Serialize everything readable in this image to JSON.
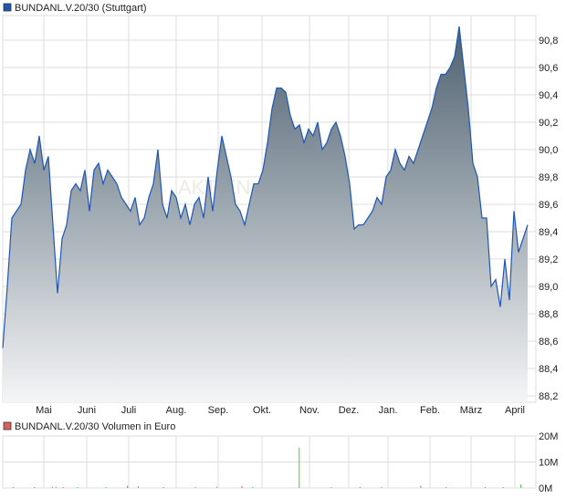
{
  "price_legend": {
    "label": "BUNDANL.V.20/30 (Stuttgart)",
    "color": "#1f56b4"
  },
  "volume_legend": {
    "label": "BUNDANL.V.20/30 Volumen in Euro",
    "color": "#d9625e"
  },
  "watermark": "AKTIEN",
  "chart_data": [
    {
      "type": "area",
      "title": "BUNDANL.V.20/30 (Stuttgart)",
      "x_tick_labels": [
        "Mai",
        "Juni",
        "Juli",
        "Aug.",
        "Sep.",
        "Okt.",
        "Nov.",
        "Dez.",
        "Jan.",
        "Feb.",
        "März",
        "April"
      ],
      "y_ticks": [
        "88,2",
        "88,4",
        "88,6",
        "88,8",
        "89,0",
        "89,2",
        "89,4",
        "89,6",
        "89,8",
        "90,0",
        "90,2",
        "90,4",
        "90,6",
        "90,8"
      ],
      "ylim": [
        88.15,
        91.0
      ],
      "grid": true,
      "line_color": "#1f56b4",
      "fill_top_color": "#4e6170",
      "fill_bottom_color": "#f4f5f6",
      "values": [
        88.55,
        89.0,
        89.5,
        89.55,
        89.6,
        89.85,
        90.0,
        89.9,
        90.1,
        89.85,
        89.95,
        89.45,
        88.95,
        89.35,
        89.45,
        89.7,
        89.75,
        89.7,
        89.85,
        89.55,
        89.85,
        89.9,
        89.75,
        89.85,
        89.8,
        89.75,
        89.65,
        89.6,
        89.55,
        89.65,
        89.45,
        89.5,
        89.65,
        89.75,
        90.0,
        89.6,
        89.5,
        89.7,
        89.65,
        89.5,
        89.6,
        89.45,
        89.6,
        89.65,
        89.5,
        89.8,
        89.55,
        89.85,
        90.1,
        89.95,
        89.8,
        89.6,
        89.55,
        89.45,
        89.6,
        89.75,
        89.75,
        89.85,
        90.05,
        90.3,
        90.45,
        90.45,
        90.42,
        90.25,
        90.15,
        90.18,
        90.05,
        90.15,
        90.1,
        90.2,
        90.0,
        90.05,
        90.15,
        90.2,
        90.1,
        89.95,
        89.75,
        89.42,
        89.45,
        89.45,
        89.5,
        89.55,
        89.65,
        89.6,
        89.8,
        89.85,
        90.0,
        89.9,
        89.85,
        89.95,
        89.9,
        90.0,
        90.1,
        90.2,
        90.3,
        90.45,
        90.55,
        90.55,
        90.6,
        90.68,
        90.9,
        90.6,
        90.3,
        89.9,
        89.8,
        89.5,
        89.5,
        89.0,
        89.05,
        88.85,
        89.2,
        88.9,
        89.55,
        89.25,
        89.35,
        89.45
      ]
    },
    {
      "type": "bar",
      "title": "BUNDANL.V.20/30 Volumen in Euro",
      "y_ticks": [
        "0M",
        "10M",
        "20M"
      ],
      "ylim": [
        0,
        20000000
      ],
      "grid": true,
      "up_color": "#3fcf3f",
      "down_color": "#d9625e",
      "bars": [
        {
          "i": 2,
          "v": 300000,
          "dir": "down"
        },
        {
          "i": 8,
          "v": 300000,
          "dir": "down"
        },
        {
          "i": 13,
          "v": 400000,
          "dir": "up"
        },
        {
          "i": 14,
          "v": 500000,
          "dir": "up"
        },
        {
          "i": 16,
          "v": 300000,
          "dir": "down"
        },
        {
          "i": 20,
          "v": 300000,
          "dir": "up"
        },
        {
          "i": 28,
          "v": 300000,
          "dir": "up"
        },
        {
          "i": 34,
          "v": 900000,
          "dir": "down"
        },
        {
          "i": 37,
          "v": 700000,
          "dir": "up"
        },
        {
          "i": 44,
          "v": 300000,
          "dir": "down"
        },
        {
          "i": 53,
          "v": 400000,
          "dir": "up"
        },
        {
          "i": 59,
          "v": 500000,
          "dir": "up"
        },
        {
          "i": 66,
          "v": 800000,
          "dir": "down"
        },
        {
          "i": 69,
          "v": 400000,
          "dir": "up"
        },
        {
          "i": 82,
          "v": 15500000,
          "dir": "up"
        },
        {
          "i": 91,
          "v": 300000,
          "dir": "up"
        },
        {
          "i": 99,
          "v": 300000,
          "dir": "down"
        },
        {
          "i": 105,
          "v": 400000,
          "dir": "up"
        },
        {
          "i": 116,
          "v": 900000,
          "dir": "down"
        },
        {
          "i": 123,
          "v": 300000,
          "dir": "up"
        },
        {
          "i": 134,
          "v": 300000,
          "dir": "down"
        },
        {
          "i": 139,
          "v": 300000,
          "dir": "down"
        },
        {
          "i": 144,
          "v": 1400000,
          "dir": "up"
        }
      ]
    }
  ]
}
